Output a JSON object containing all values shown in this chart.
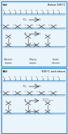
{
  "fig_width": 0.97,
  "fig_height": 1.89,
  "dpi": 100,
  "bg_color": "#d6eaf8",
  "panel_bg": "#eaf4fb",
  "border_color": "#2980b9",
  "text_color": "#000000",
  "panel_a_label": "(a)",
  "panel_b_label": "(b)",
  "panel_a_title": "Below 300°C",
  "panel_b_title": "300°C and above",
  "substrate_color": "#b8d4e8",
  "substrate_line_color": "#5b9dc9",
  "molecule_color": "#333333",
  "label_bidentate": "Bidentate\ncomplex",
  "label_bridging": "Bridging\ncomplex",
  "label_oxalate": "Oxalate\nbidentate",
  "label_thermal": "Thermal\ndecomposition",
  "arrow_color": "#555555"
}
